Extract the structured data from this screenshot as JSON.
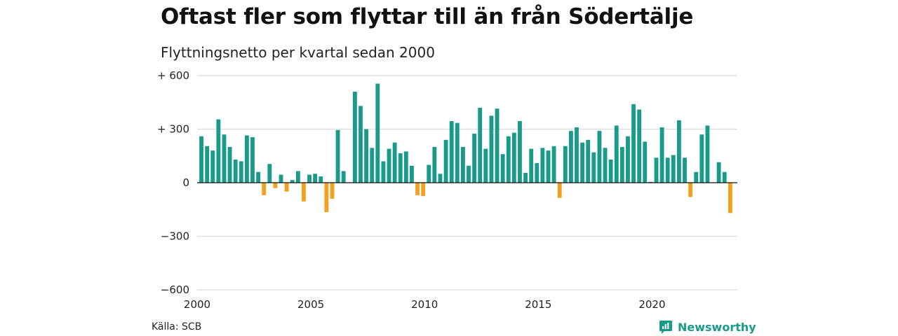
{
  "chart_data": {
    "type": "bar",
    "title": "Oftast fler som flyttar till än från Södertälje",
    "subtitle": "Flyttningsnetto per kvartal sedan 2000",
    "xlabel": "",
    "ylabel": "",
    "ylim": [
      -600,
      600
    ],
    "yticks": [
      600,
      300,
      0,
      -300,
      -600
    ],
    "ytick_labels": [
      "+ 600",
      "+ 300",
      "0",
      "−300",
      "−600"
    ],
    "xlim": [
      2000,
      2023.75
    ],
    "xticks": [
      2000,
      2005,
      2010,
      2015,
      2020
    ],
    "xtick_labels": [
      "2000",
      "2005",
      "2010",
      "2015",
      "2020"
    ],
    "grid": true,
    "positive_color": "#1a9a8a",
    "negative_color": "#f2a01f",
    "series": [
      {
        "values": [
          260,
          205,
          180,
          355,
          270,
          200,
          130,
          120,
          265,
          255,
          60,
          -70,
          105,
          -30,
          45,
          -50,
          15,
          65,
          -105,
          45,
          50,
          35,
          -165,
          -90,
          295,
          65,
          0,
          510,
          430,
          300,
          195,
          555,
          120,
          190,
          225,
          165,
          175,
          95,
          -70,
          -75,
          100,
          200,
          50,
          240,
          345,
          335,
          200,
          95,
          275,
          420,
          190,
          375,
          415,
          160,
          260,
          280,
          345,
          55,
          190,
          110,
          195,
          180,
          205,
          -85,
          205,
          290,
          310,
          225,
          240,
          170,
          290,
          195,
          130,
          320,
          200,
          260,
          440,
          410,
          230,
          5,
          140,
          310,
          140,
          155,
          350,
          140,
          -80,
          60,
          270,
          320,
          0,
          115,
          60,
          -170
        ]
      }
    ]
  },
  "footer": {
    "source": "Källa: SCB",
    "brand": "Newsworthy"
  },
  "icons": {
    "brand_logo": "newsworthy-logo-icon"
  }
}
